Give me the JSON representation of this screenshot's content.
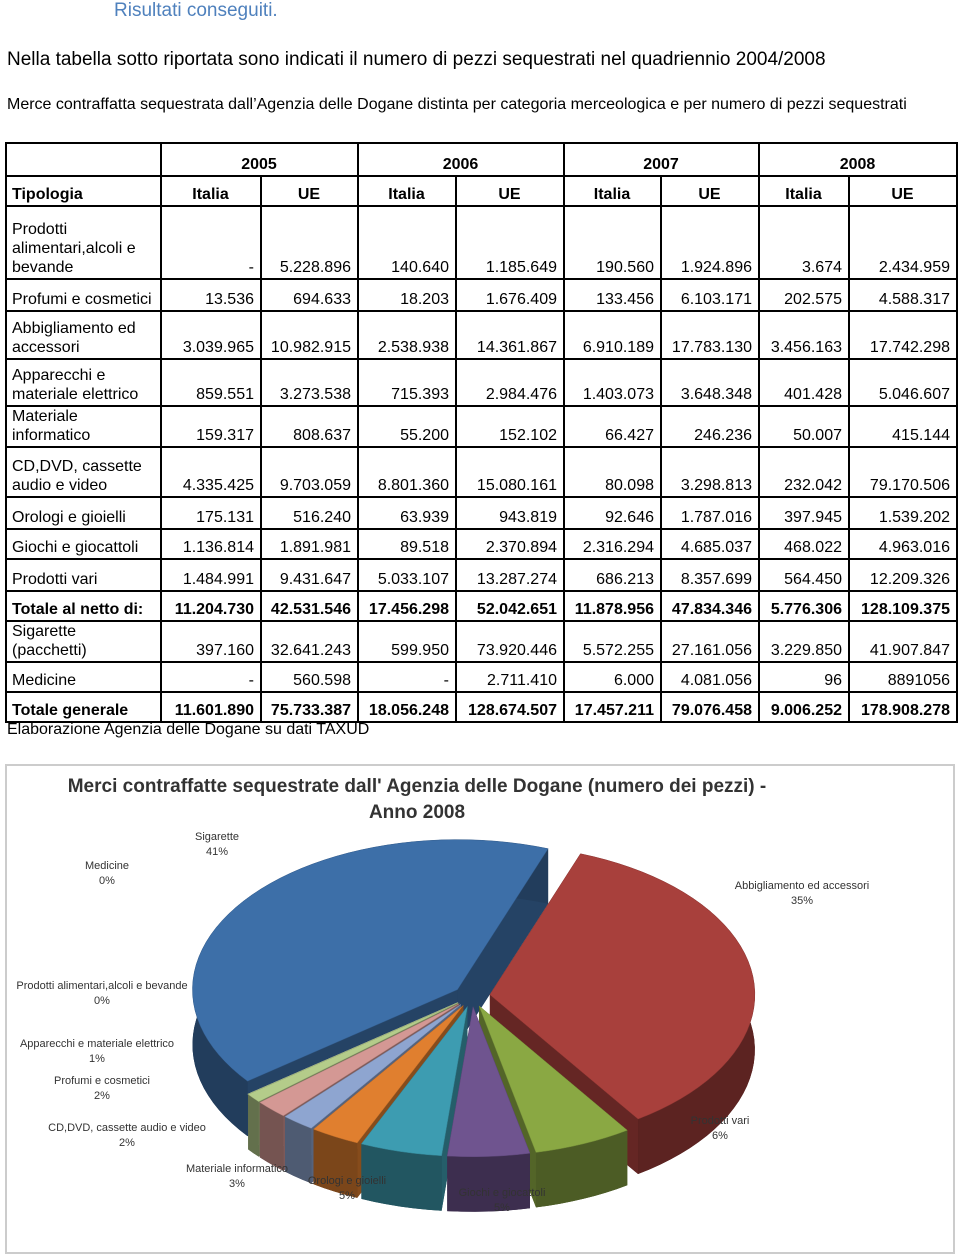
{
  "heading": "Risultati conseguiti.",
  "intro": "Nella tabella sotto riportata sono indicati il numero di pezzi sequestrati nel quadriennio 2004/2008",
  "table_caption": "Merce contraffatta sequestrata dall’Agenzia delle Dogane distinta per categoria merceologica e per numero di pezzi sequestrati",
  "table": {
    "years": [
      "2005",
      "2006",
      "2007",
      "2008"
    ],
    "first_column": "Tipologia",
    "subheaders": [
      "Italia",
      "UE",
      "Italia",
      "UE",
      "Italia",
      "UE",
      "Italia",
      "UE"
    ],
    "rows": [
      [
        "Prodotti alimentari,alcoli e bevande",
        "-",
        "5.228.896",
        "140.640",
        "1.185.649",
        "190.560",
        "1.924.896",
        "3.674",
        "2.434.959"
      ],
      [
        "Profumi e cosmetici",
        "13.536",
        "694.633",
        "18.203",
        "1.676.409",
        "133.456",
        "6.103.171",
        "202.575",
        "4.588.317"
      ],
      [
        "Abbigliamento ed accessori",
        "3.039.965",
        "10.982.915",
        "2.538.938",
        "14.361.867",
        "6.910.189",
        "17.783.130",
        "3.456.163",
        "17.742.298"
      ],
      [
        "Apparecchi e materiale elettrico",
        "859.551",
        "3.273.538",
        "715.393",
        "2.984.476",
        "1.403.073",
        "3.648.348",
        "401.428",
        "5.046.607"
      ],
      [
        "Materiale informatico",
        "159.317",
        "808.637",
        "55.200",
        "152.102",
        "66.427",
        "246.236",
        "50.007",
        "415.144"
      ],
      [
        "CD,DVD, cassette audio e video",
        "4.335.425",
        "9.703.059",
        "8.801.360",
        "15.080.161",
        "80.098",
        "3.298.813",
        "232.042",
        "79.170.506"
      ],
      [
        "Orologi e gioielli",
        "175.131",
        "516.240",
        "63.939",
        "943.819",
        "92.646",
        "1.787.016",
        "397.945",
        "1.539.202"
      ],
      [
        "Giochi e giocattoli",
        "1.136.814",
        "1.891.981",
        "89.518",
        "2.370.894",
        "2.316.294",
        "4.685.037",
        "468.022",
        "4.963.016"
      ],
      [
        "Prodotti vari",
        "1.484.991",
        "9.431.647",
        "5.033.107",
        "13.287.274",
        "686.213",
        "8.357.699",
        "564.450",
        "12.209.326"
      ],
      [
        "Totale al netto di:",
        "11.204.730",
        "42.531.546",
        "17.456.298",
        "52.042.651",
        "11.878.956",
        "47.834.346",
        "5.776.306",
        "128.109.375"
      ],
      [
        "Sigarette (pacchetti)",
        "397.160",
        "32.641.243",
        "599.950",
        "73.920.446",
        "5.572.255",
        "27.161.056",
        "3.229.850",
        "41.907.847"
      ],
      [
        "Medicine",
        "-",
        "560.598",
        "-",
        "2.711.410",
        "6.000",
        "4.081.056",
        "96",
        "8891056"
      ],
      [
        "Totale generale",
        "11.601.890",
        "75.733.387",
        "18.056.248",
        "128.674.507",
        "17.457.211",
        "79.076.458",
        "9.006.252",
        "178.908.278"
      ]
    ]
  },
  "source": "Elaborazione Agenzia delle Dogane su dati TAXUD",
  "chart_data": {
    "type": "pie",
    "title": "Merci contraffatte sequestrate dall' Agenzia delle Dogane (numero dei pezzi) -\nAnno 2008",
    "categories": [
      "Abbigliamento ed accessori",
      "Prodotti vari",
      "Giochi e giocattoli",
      "Orologi e gioielli",
      "Materiale informatico",
      "CD,DVD, cassette audio e video",
      "Profumi e cosmetici",
      "Apparecchi e materiale elettrico",
      "Prodotti alimentari,alcoli e bevande",
      "Medicine",
      "Sigarette"
    ],
    "values": [
      35,
      6,
      5,
      5,
      3,
      2,
      2,
      1,
      0,
      0,
      41
    ],
    "value_labels": [
      "35%",
      "6%",
      "5%",
      "5%",
      "3%",
      "2%",
      "2%",
      "1%",
      "0%",
      "0%",
      "41%"
    ],
    "colors": [
      "#a8403c",
      "#8aa843",
      "#6f548f",
      "#3d9cb1",
      "#e07f2f",
      "#8ea5d0",
      "#d49894",
      "#b4cc8a",
      "#b9cde5",
      "#c3d69b",
      "#3d6fa8"
    ]
  }
}
